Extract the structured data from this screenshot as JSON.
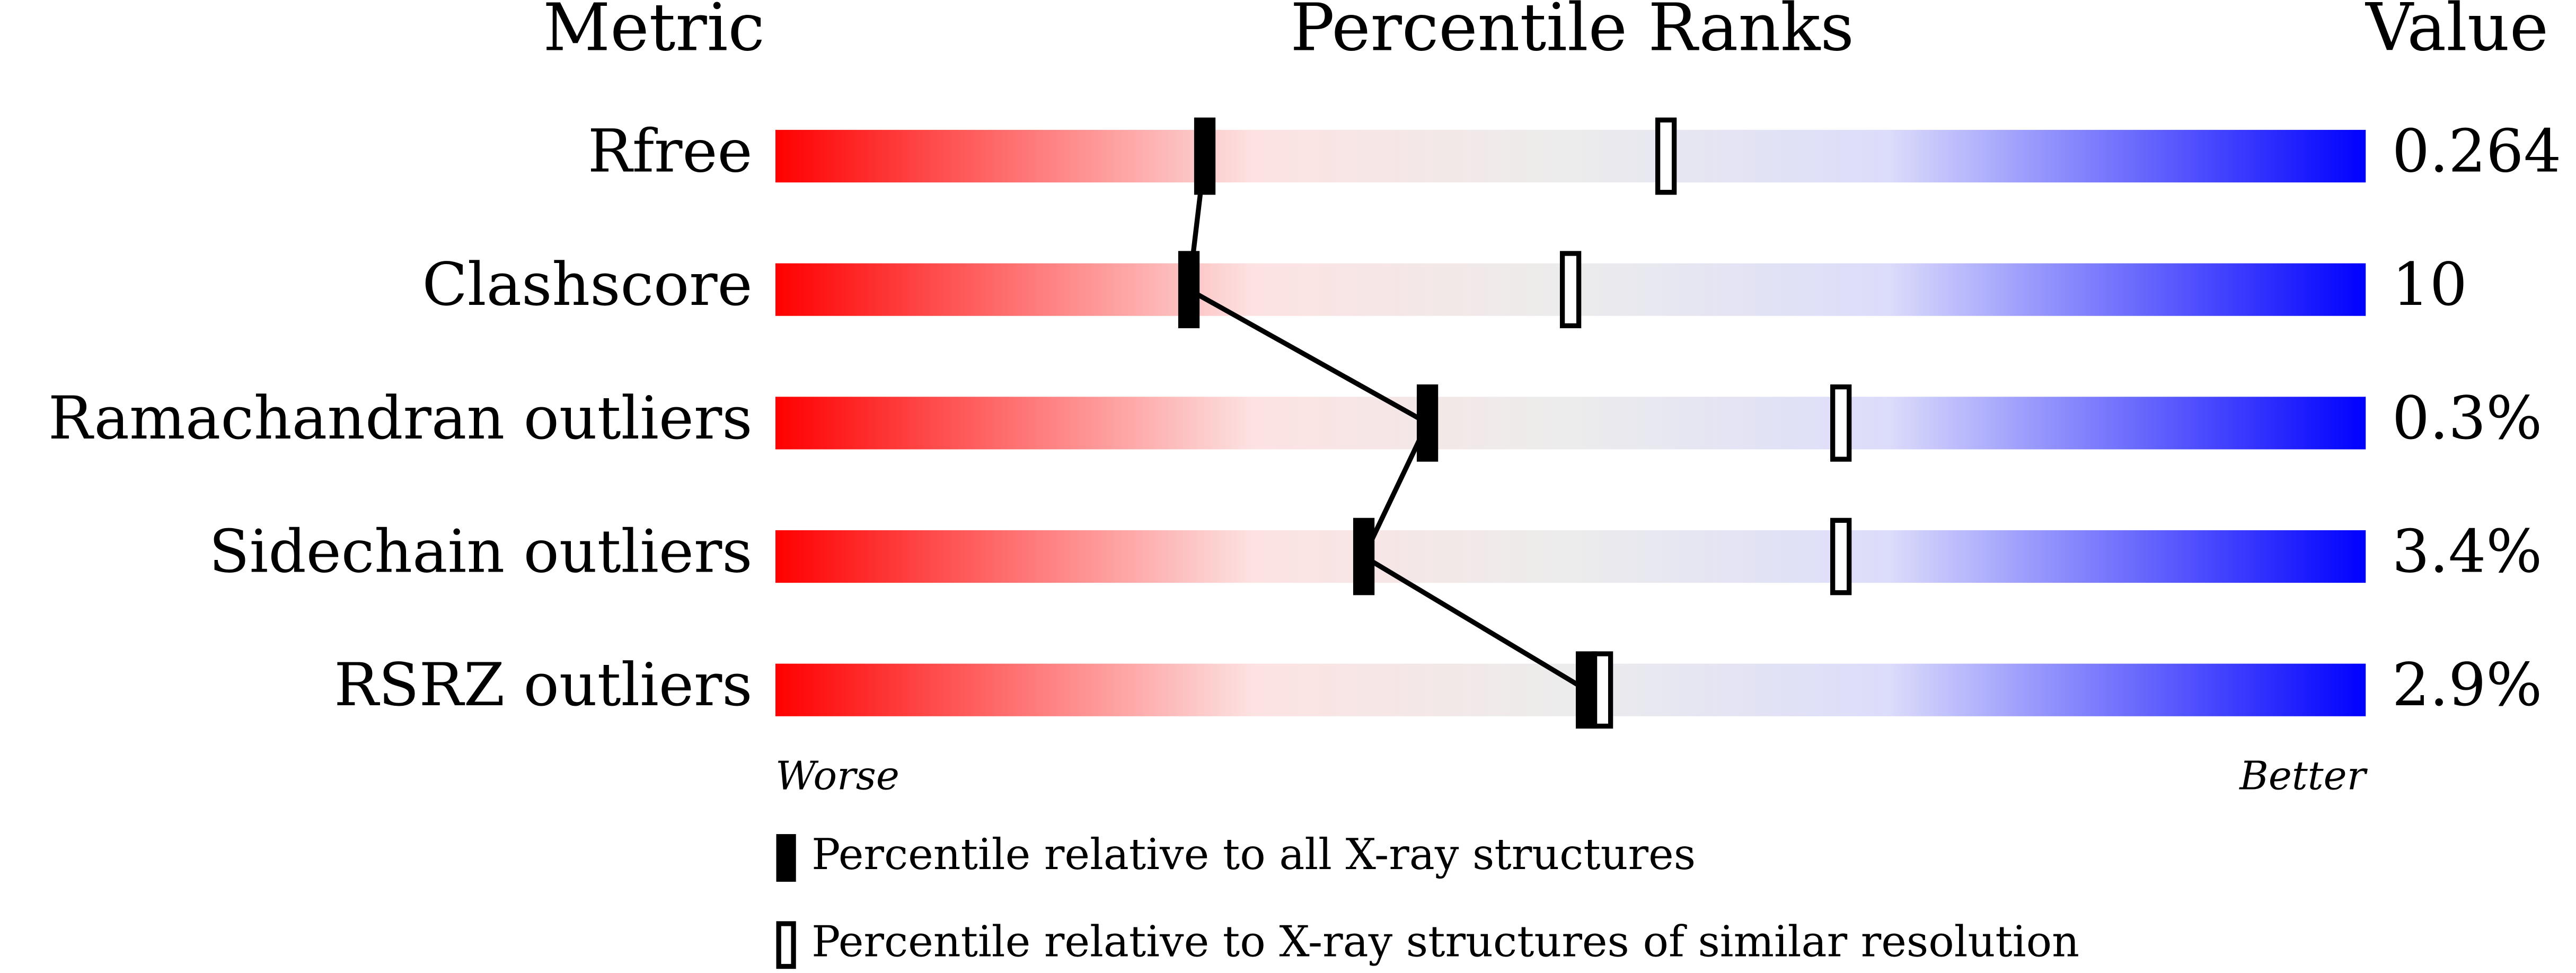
{
  "chart_data": {
    "type": "percentile",
    "headers": {
      "metric": "Metric",
      "ranks": "Percentile Ranks",
      "value": "Value"
    },
    "categories": [
      "Rfree",
      "Clashscore",
      "Ramachandran outliers",
      "Sidechain outliers",
      "RSRZ outliers"
    ],
    "metric_values": [
      "0.264",
      "10",
      "0.3%",
      "3.4%",
      "2.9%"
    ],
    "xlim": [
      0,
      100
    ],
    "series": [
      {
        "name": "Percentile relative to all X-ray structures",
        "color": "#000000",
        "values": [
          27,
          26,
          41,
          37,
          51
        ]
      },
      {
        "name": "Percentile relative to X-ray structures of similar resolution",
        "color": "#ffffff",
        "values": [
          56,
          50,
          67,
          67,
          52
        ]
      }
    ],
    "axis_ends": [
      "Worse",
      "Better"
    ]
  }
}
